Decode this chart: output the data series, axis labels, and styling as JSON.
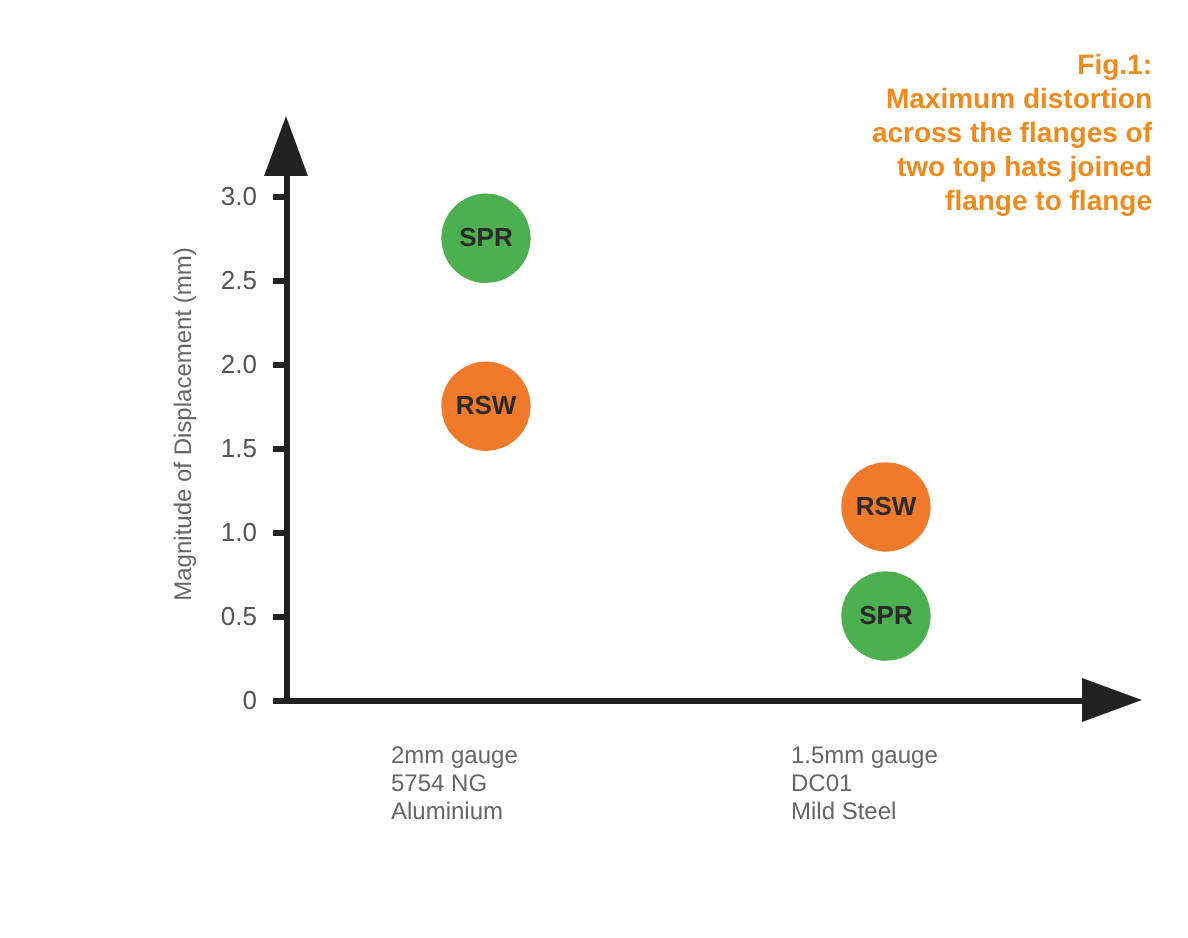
{
  "chart_data": {
    "type": "scatter",
    "title": "Fig.1:",
    "subtitle": "Maximum distortion across the flanges of two top hats joined flange to flange",
    "ylabel": "Magnitude of Displacement (mm)",
    "categories": [
      "2mm gauge\n5754 NG\nAluminium",
      "1.5mm gauge\nDC01\nMild Steel"
    ],
    "series": [
      {
        "name": "SPR",
        "color": "#4caf50",
        "values": [
          2.75,
          0.5
        ]
      },
      {
        "name": "RSW",
        "color": "#f07a2a",
        "values": [
          1.75,
          1.15
        ]
      }
    ],
    "ylim": [
      0,
      3.3
    ],
    "yticks": [
      0,
      0.5,
      {
        "value": 1,
        "label": "1.0"
      },
      1.5,
      {
        "value": 2,
        "label": "2.0"
      },
      2.5,
      {
        "value": 3,
        "label": "3.0"
      }
    ],
    "marker": "circle",
    "legend": false,
    "grid": false
  }
}
